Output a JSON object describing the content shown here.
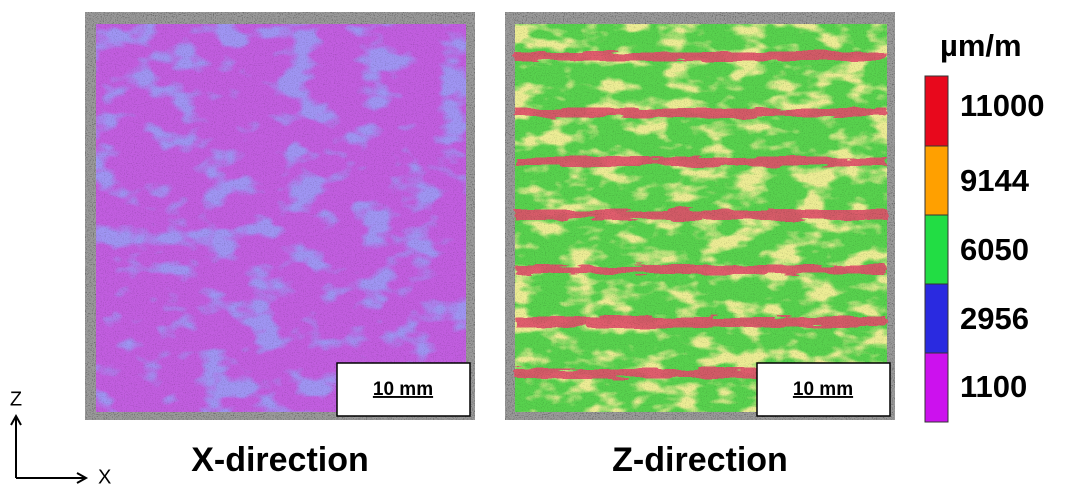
{
  "panels": [
    {
      "label": "X-direction",
      "scale_bar": "10 mm"
    },
    {
      "label": "Z-direction",
      "scale_bar": "10 mm"
    }
  ],
  "colorbar": {
    "unit": "µm/m",
    "labels": [
      "11000",
      "9144",
      "6050",
      "2956",
      "1100"
    ]
  },
  "axes": {
    "vertical": "Z",
    "horizontal": "X"
  }
}
